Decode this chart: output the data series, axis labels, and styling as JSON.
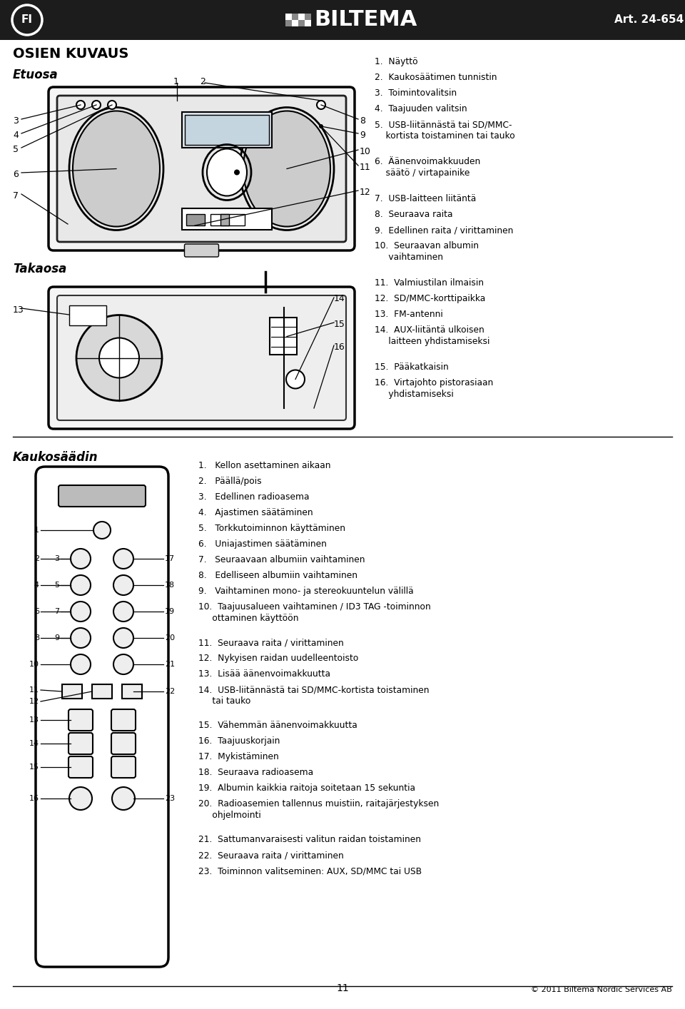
{
  "bg_color": "#ffffff",
  "header_bg": "#1c1c1c",
  "header_fi": "FI",
  "header_art": "Art. 24-654",
  "section_title": "OSIEN KUVAUS",
  "front_label": "Etuosa",
  "back_label": "Takaosa",
  "remote_label": "Kaukosäädin",
  "page_number": "11",
  "copyright": "© 2011 Biltema Nordic Services AB",
  "right_list": [
    "1.  Näyttö",
    "2.  Kaukosäätimen tunnistin",
    "3.  Toimintovalitsin",
    "4.  Taajuuden valitsin",
    "5.  USB-liitännästä tai SD/MMC-\n    kortista toistaminen tai tauko",
    "6.  Äänenvoimakkuuden\n    säätö / virtapainike",
    "7.  USB-laitteen liitäntä",
    "8.  Seuraava raita",
    "9.  Edellinen raita / virittaminen",
    "10.  Seuraavan albumin\n     vaihtaminen",
    "11.  Valmiustilan ilmaisin",
    "12.  SD/MMC-korttipaikka",
    "13.  FM-antenni",
    "14.  AUX-liitäntä ulkoisen\n     laitteen yhdistamiseksi",
    "15.  Pääkatkaisin",
    "16.  Virtajohto pistorasiaan\n     yhdistamiseksi"
  ],
  "remote_list": [
    "1.   Kellon asettaminen aikaan",
    "2.   Päällä/pois",
    "3.   Edellinen radioasema",
    "4.   Ajastimen säätäminen",
    "5.   Torkkutoiminnon käyttäminen",
    "6.   Uniajastimen säätäminen",
    "7.   Seuraavaan albumiin vaihtaminen",
    "8.   Edelliseen albumiin vaihtaminen",
    "9.   Vaihtaminen mono- ja stereokuuntelun välillä",
    "10.  Taajuusalueen vaihtaminen / ID3 TAG -toiminnon\n     ottaminen käyttöön",
    "11.  Seuraava raita / virittaminen",
    "12.  Nykyisen raidan uudelleentoisto",
    "13.  Lisää äänenvoimakkuutta",
    "14.  USB-liitännästä tai SD/MMC-kortista toistaminen\n     tai tauko",
    "15.  Vähemmän äänenvoimakkuutta",
    "16.  Taajuuskorjain",
    "17.  Mykistäminen",
    "18.  Seuraava radioasema",
    "19.  Albumin kaikkia raitoja soitetaan 15 sekuntia",
    "20.  Radioasemien tallennus muistiin, raitajärjestyksen\n     ohjelmointi",
    "21.  Sattumanvaraisesti valitun raidan toistaminen",
    "22.  Seuraava raita / virittaminen",
    "23.  Toiminnon valitseminen: AUX, SD/MMC tai USB"
  ]
}
